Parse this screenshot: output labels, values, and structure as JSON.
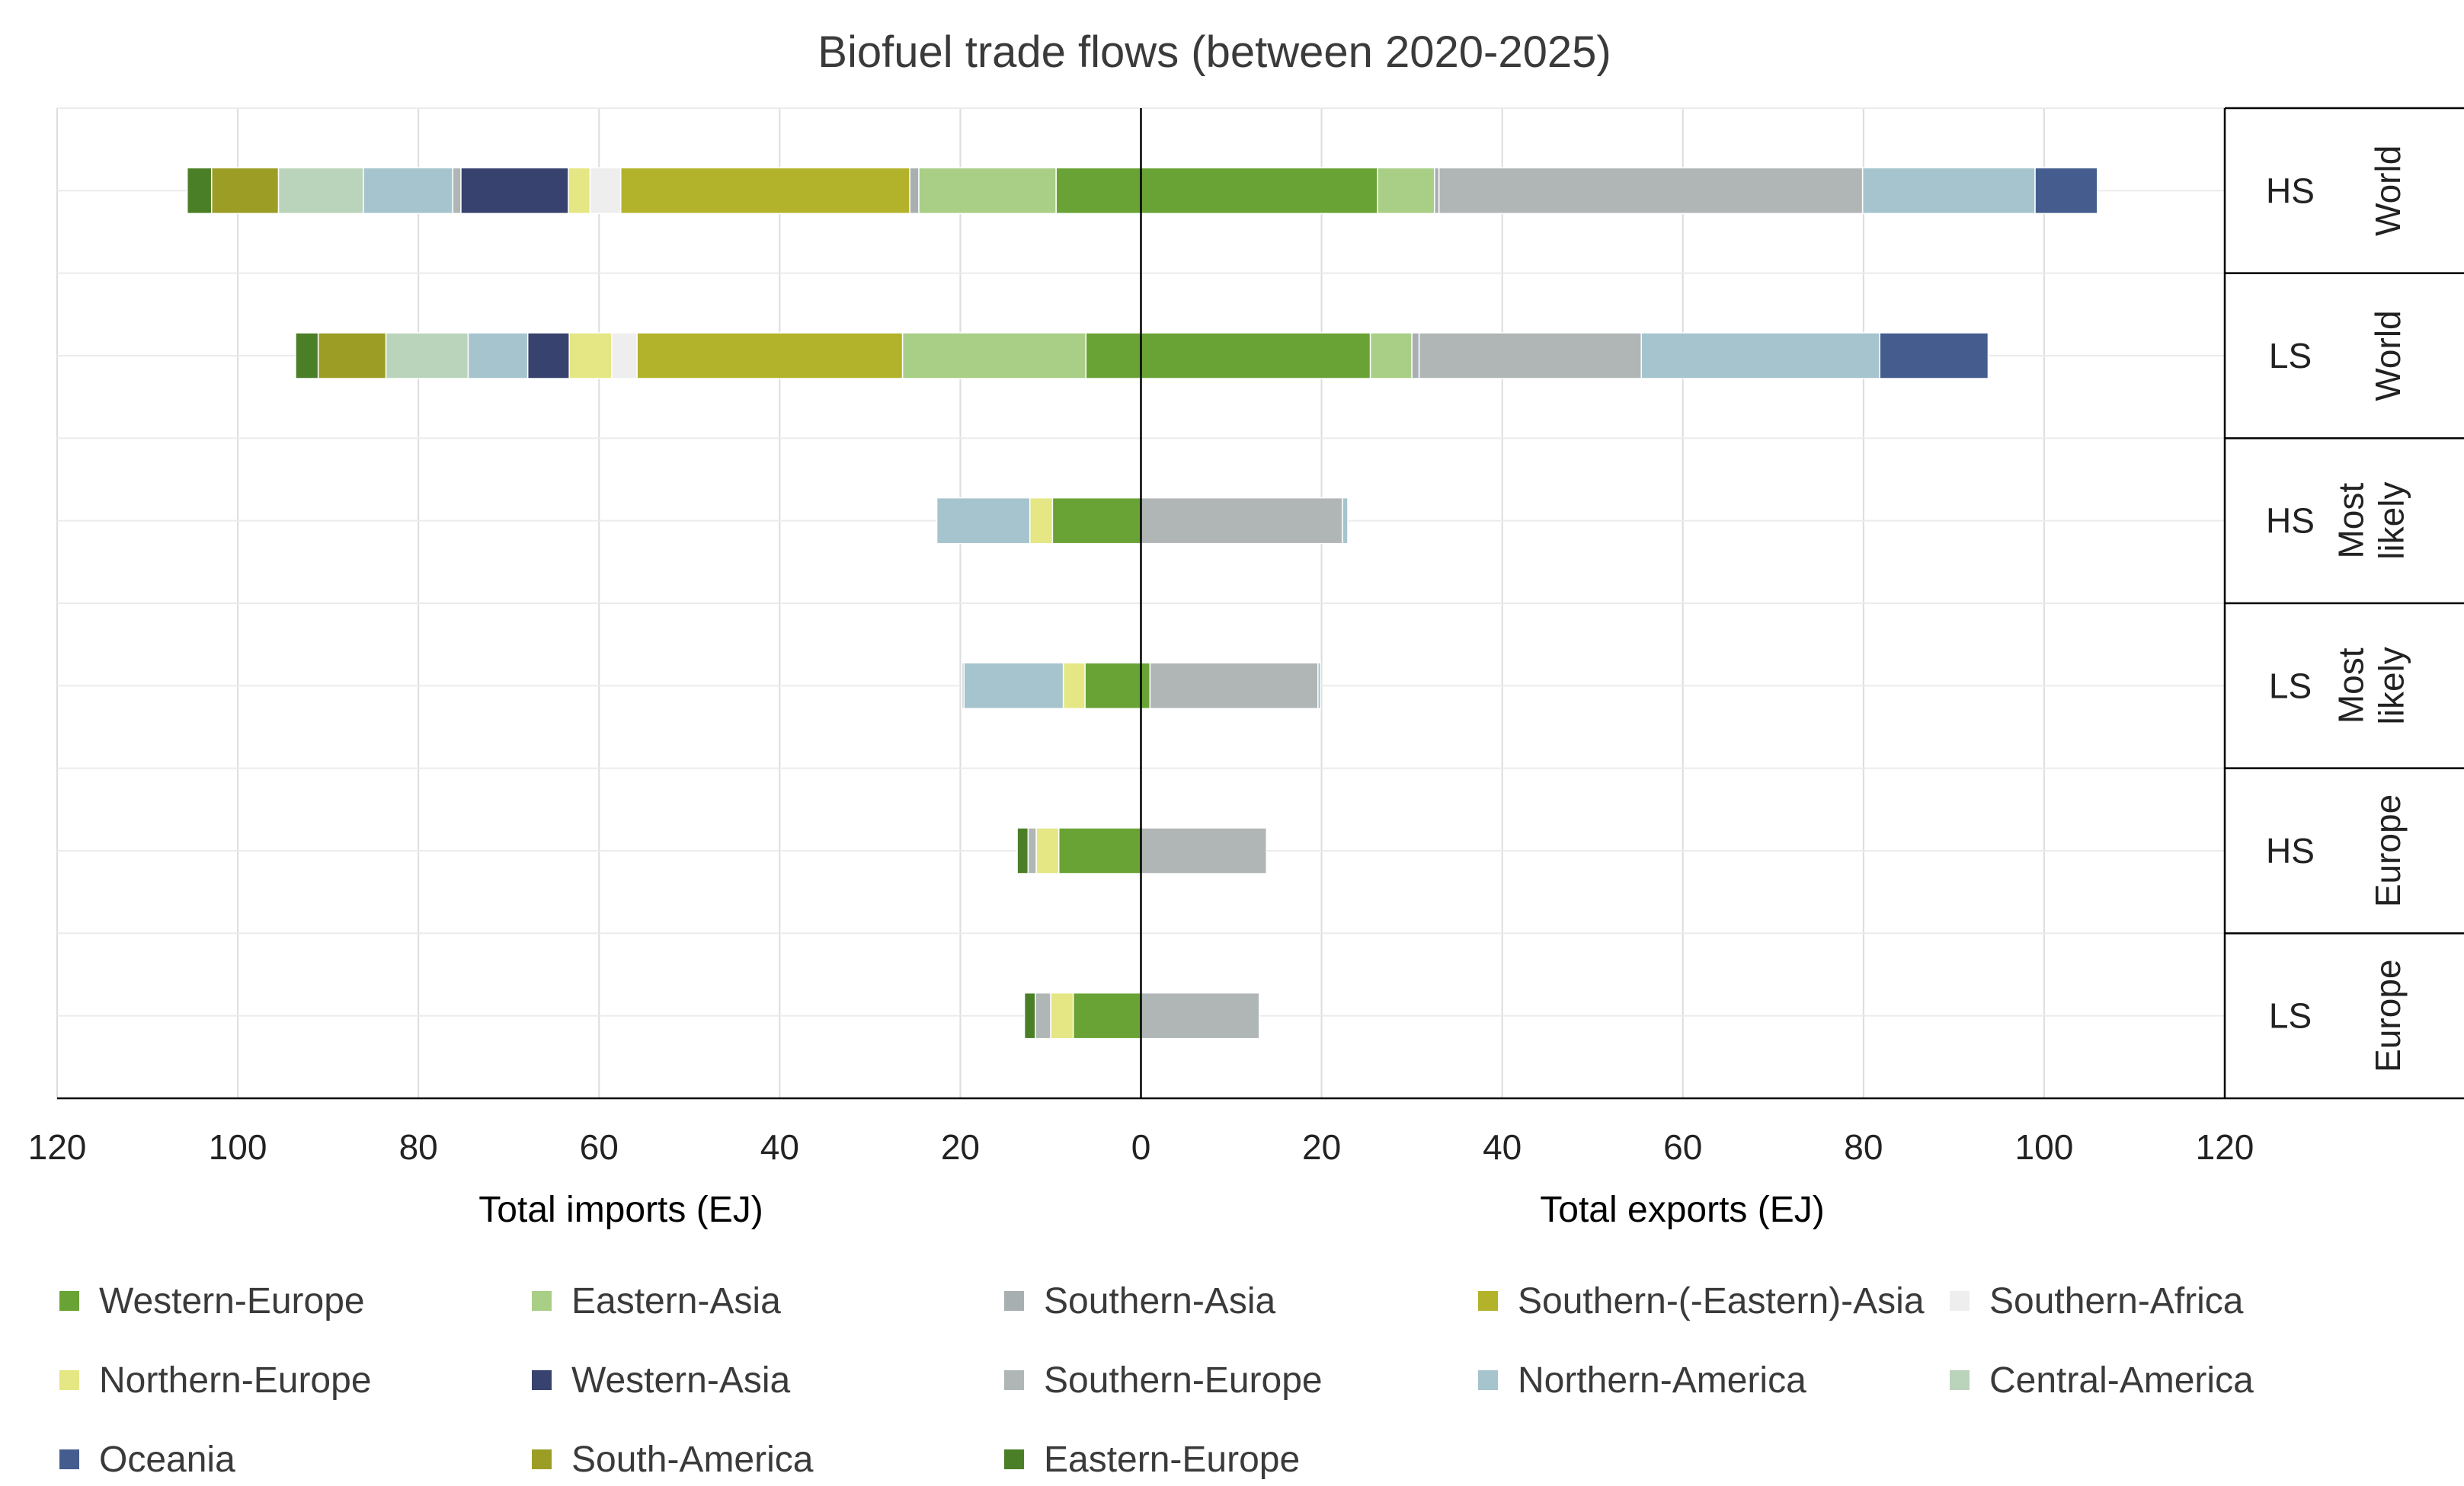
{
  "chart_data": {
    "type": "bar",
    "orientation": "horizontal-diverging-stacked",
    "title": "Biofuel trade flows (between 2020-2025)",
    "xlabel_left": "Total  imports (EJ)",
    "xlabel_right": "Total  exports (EJ)",
    "xlim": [
      -120,
      120
    ],
    "ticks": [
      -120,
      -100,
      -80,
      -60,
      -40,
      -20,
      0,
      20,
      40,
      60,
      80,
      100,
      120
    ],
    "tick_labels": [
      "120",
      "100",
      "80",
      "60",
      "40",
      "20",
      "0",
      "20",
      "40",
      "60",
      "80",
      "100",
      "120"
    ],
    "grid": true,
    "legend_position": "bottom",
    "series": [
      {
        "name": "Western-Europe",
        "color": "#6aa335"
      },
      {
        "name": "Eastern-Asia",
        "color": "#a9ce86"
      },
      {
        "name": "Southern-Asia",
        "color": "#a8afb0"
      },
      {
        "name": "Southern-(-Eastern)-Asia",
        "color": "#b2b32b"
      },
      {
        "name": "Southern-Africa",
        "color": "#eeeeee"
      },
      {
        "name": "Northern-Europe",
        "color": "#e4e783"
      },
      {
        "name": "Western-Asia",
        "color": "#38426e"
      },
      {
        "name": "Southern-Europe",
        "color": "#b0b6b6"
      },
      {
        "name": "Northern-America",
        "color": "#a5c4cd"
      },
      {
        "name": "Central-America",
        "color": "#bad4bb"
      },
      {
        "name": "Oceania",
        "color": "#445d8e"
      },
      {
        "name": "South-America",
        "color": "#9b9d25"
      },
      {
        "name": "Eastern-Europe",
        "color": "#4b7f27"
      }
    ],
    "rows": [
      {
        "scenario": "HS",
        "group": "World",
        "imports": [
          {
            "series": "Western-Europe",
            "value": 9.4
          },
          {
            "series": "Eastern-Asia",
            "value": 15.2
          },
          {
            "series": "Southern-Asia",
            "value": 1.0
          },
          {
            "series": "Southern-(-Eastern)-Asia",
            "value": 32.0
          },
          {
            "series": "Southern-Africa",
            "value": 3.4
          },
          {
            "series": "Northern-Europe",
            "value": 2.4
          },
          {
            "series": "Western-Asia",
            "value": 11.9
          },
          {
            "series": "Southern-Europe",
            "value": 0.9
          },
          {
            "series": "Northern-America",
            "value": 9.9
          },
          {
            "series": "Central-America",
            "value": 9.4
          },
          {
            "series": "South-America",
            "value": 7.4
          },
          {
            "series": "Eastern-Europe",
            "value": 2.7
          }
        ],
        "exports": [
          {
            "series": "Western-Europe",
            "value": 26.2
          },
          {
            "series": "Eastern-Asia",
            "value": 6.3
          },
          {
            "series": "Southern-Asia",
            "value": 0.5
          },
          {
            "series": "Southern-Europe",
            "value": 46.9
          },
          {
            "series": "Northern-America",
            "value": 19.1
          },
          {
            "series": "Oceania",
            "value": 6.9
          }
        ]
      },
      {
        "scenario": "LS",
        "group": "World",
        "imports": [
          {
            "series": "Western-Europe",
            "value": 6.1
          },
          {
            "series": "Eastern-Asia",
            "value": 20.3
          },
          {
            "series": "Southern-(-Eastern)-Asia",
            "value": 29.4
          },
          {
            "series": "Southern-Africa",
            "value": 2.8
          },
          {
            "series": "Northern-Europe",
            "value": 4.7
          },
          {
            "series": "Western-Asia",
            "value": 4.6
          },
          {
            "series": "Northern-America",
            "value": 6.6
          },
          {
            "series": "Central-America",
            "value": 9.1
          },
          {
            "series": "South-America",
            "value": 7.5
          },
          {
            "series": "Eastern-Europe",
            "value": 2.5
          }
        ],
        "exports": [
          {
            "series": "Western-Europe",
            "value": 25.4
          },
          {
            "series": "Eastern-Asia",
            "value": 4.6
          },
          {
            "series": "Southern-Asia",
            "value": 0.8
          },
          {
            "series": "Southern-Europe",
            "value": 24.6
          },
          {
            "series": "Northern-America",
            "value": 26.4
          },
          {
            "series": "Oceania",
            "value": 12.0
          }
        ]
      },
      {
        "scenario": "HS",
        "group": "Most likely",
        "imports": [
          {
            "series": "Western-Europe",
            "value": 9.8
          },
          {
            "series": "Northern-Europe",
            "value": 2.5
          },
          {
            "series": "Northern-America",
            "value": 10.3
          }
        ],
        "exports": [
          {
            "series": "Southern-Europe",
            "value": 22.3
          },
          {
            "series": "Northern-America",
            "value": 0.6
          }
        ]
      },
      {
        "scenario": "LS",
        "group": "Most likely",
        "imports": [
          {
            "series": "Western-Europe",
            "value": 6.2
          },
          {
            "series": "Northern-Europe",
            "value": 2.4
          },
          {
            "series": "Northern-America",
            "value": 11.0
          },
          {
            "series": "Southern-Europe",
            "value": 0.2
          }
        ],
        "exports": [
          {
            "series": "Western-Europe",
            "value": 1.0
          },
          {
            "series": "Southern-Europe",
            "value": 18.6
          },
          {
            "series": "Northern-America",
            "value": 0.3
          }
        ]
      },
      {
        "scenario": "HS",
        "group": "Europe",
        "imports": [
          {
            "series": "Western-Europe",
            "value": 9.1
          },
          {
            "series": "Northern-Europe",
            "value": 2.5
          },
          {
            "series": "Southern-Europe",
            "value": 0.9
          },
          {
            "series": "Eastern-Europe",
            "value": 1.2
          }
        ],
        "exports": [
          {
            "series": "Southern-Europe",
            "value": 13.9
          }
        ]
      },
      {
        "scenario": "LS",
        "group": "Europe",
        "imports": [
          {
            "series": "Western-Europe",
            "value": 7.5
          },
          {
            "series": "Northern-Europe",
            "value": 2.5
          },
          {
            "series": "Southern-Europe",
            "value": 1.7
          },
          {
            "series": "Eastern-Europe",
            "value": 1.2
          }
        ],
        "exports": [
          {
            "series": "Southern-Europe",
            "value": 13.1
          }
        ]
      }
    ]
  }
}
